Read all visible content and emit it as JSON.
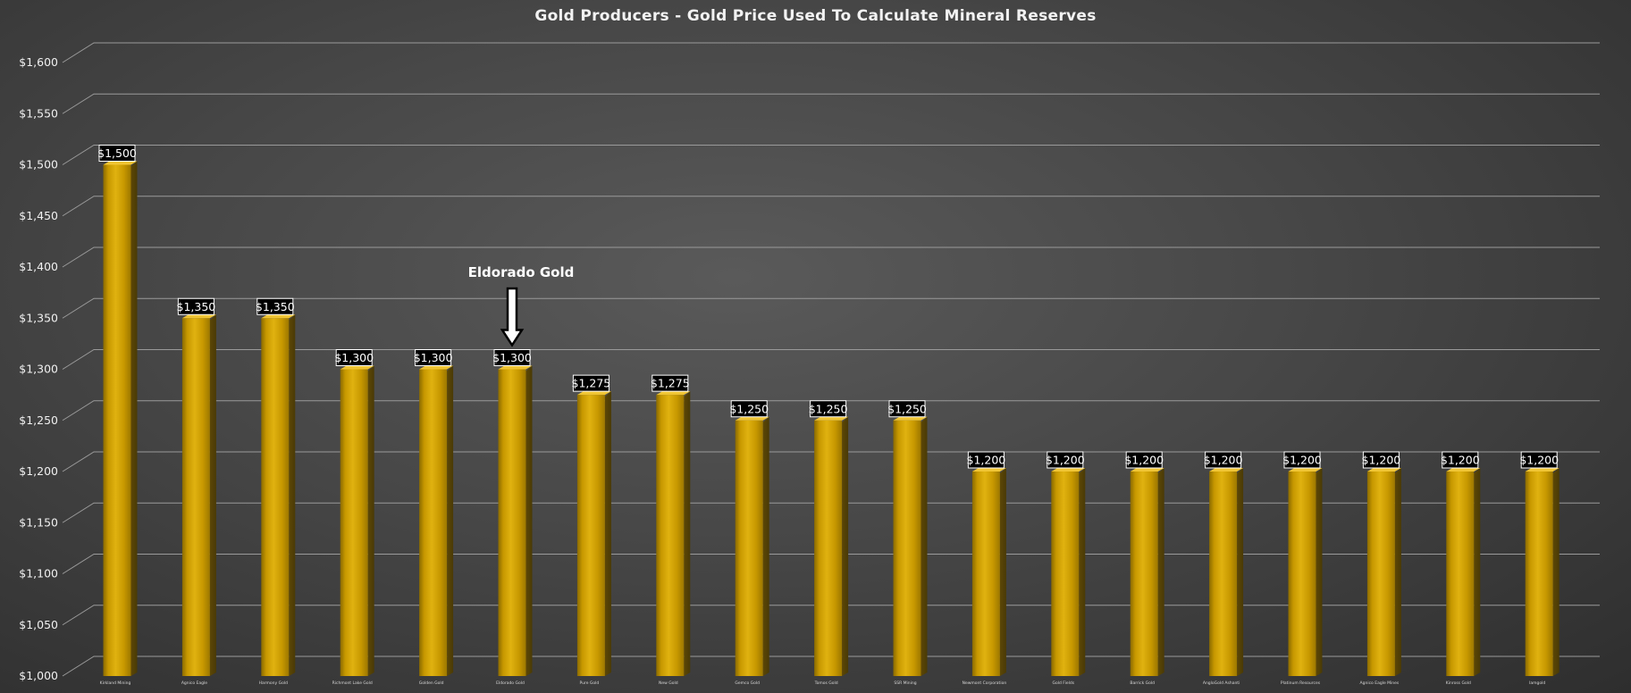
{
  "chart_data": {
    "type": "bar",
    "title": "Gold Producers - Gold Price Used To Calculate Mineral Reserves",
    "xlabel": "",
    "ylabel": "",
    "ylim": [
      1000,
      1600
    ],
    "ytick_step": 50,
    "ytick_labels": [
      "$1,000",
      "$1,050",
      "$1,100",
      "$1,150",
      "$1,200",
      "$1,250",
      "$1,300",
      "$1,350",
      "$1,400",
      "$1,450",
      "$1,500",
      "$1,550",
      "$1,600"
    ],
    "categories": [
      "Kirkland Mining",
      "Agnico Eagle",
      "Harmony Gold",
      "Richmont Lake Gold",
      "Golden Gold",
      "Eldorado Gold",
      "Pure Gold",
      "New Gold",
      "Gemco Gold",
      "Tomos Gold",
      "SSR Mining",
      "Newmont Corporation",
      "Gold Fields",
      "Barrick Gold",
      "AngloGold Ashanti",
      "Platinum Resources",
      "Agnico Eagle Mines",
      "Kinross Gold",
      "Iamgold"
    ],
    "values": [
      1500,
      1350,
      1350,
      1300,
      1300,
      1300,
      1275,
      1275,
      1250,
      1250,
      1250,
      1200,
      1200,
      1200,
      1200,
      1200,
      1200,
      1200,
      1200
    ],
    "data_labels": [
      "$1,500",
      "$1,350",
      "$1,350",
      "$1,300",
      "$1,300",
      "$1,300",
      "$1,275",
      "$1,275",
      "$1,250",
      "$1,250",
      "$1,250",
      "$1,200",
      "$1,200",
      "$1,200",
      "$1,200",
      "$1,200",
      "$1,200",
      "$1,200",
      "$1,200"
    ],
    "grid": true,
    "legend": "none",
    "annotation": {
      "text": "Eldorado Gold",
      "target_index": 5
    },
    "colors": {
      "bar_front": "#c79800",
      "bar_light": "#e0b210",
      "bar_side": "#4a3a05",
      "bar_top": "#f0c534",
      "grid": "#9a9a9a",
      "label_bg": "#000000",
      "label_border": "#ffffff"
    }
  }
}
